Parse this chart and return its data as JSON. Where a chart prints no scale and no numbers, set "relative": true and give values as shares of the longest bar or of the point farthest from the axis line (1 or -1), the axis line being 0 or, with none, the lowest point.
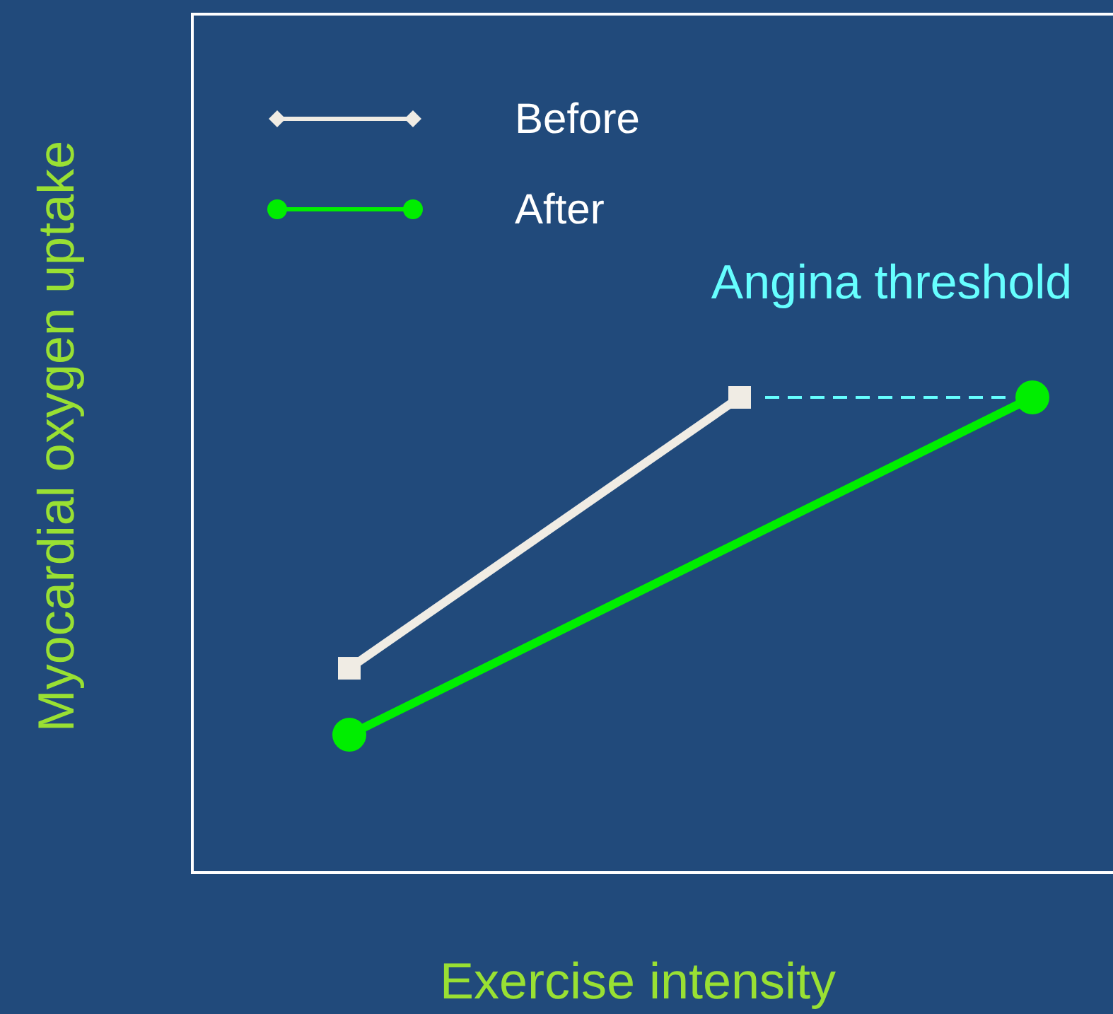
{
  "chart_data": {
    "type": "line",
    "xlabel": "Exercise intensity",
    "ylabel": "Myocardial oxygen uptake",
    "relative": true,
    "legend": "top left",
    "categories": [
      null,
      null,
      null,
      null,
      null,
      null,
      null,
      null
    ],
    "series": [
      {
        "name": "Before",
        "color": "#f0ece4",
        "values": [
          0.43,
          null,
          null,
          null,
          1,
          null,
          null,
          null
        ],
        "marker": "square"
      },
      {
        "name": "After",
        "color": "#00ee00",
        "values": [
          0.29,
          null,
          null,
          null,
          null,
          null,
          null,
          1
        ],
        "marker": "circle"
      }
    ],
    "ref_lines": [
      {
        "axis": "y",
        "value": 1,
        "label": "Angina threshold",
        "color": "#66ffff",
        "line_style": "dashed"
      }
    ]
  }
}
